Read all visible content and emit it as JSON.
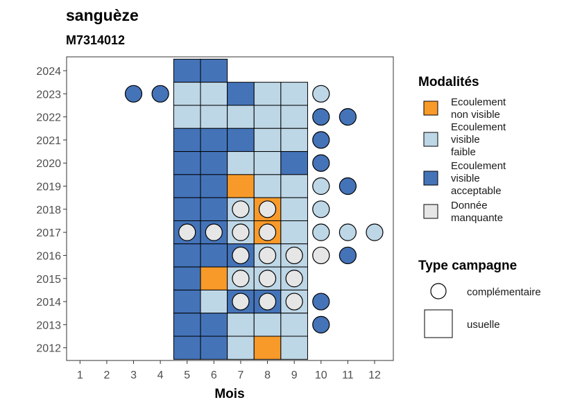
{
  "chart_data": {
    "type": "heatmap",
    "title": "sanguèze",
    "subtitle": "M7314012",
    "xlabel": "Mois",
    "ylabel": "",
    "x_ticks": [
      1,
      2,
      3,
      4,
      5,
      6,
      7,
      8,
      9,
      10,
      11,
      12
    ],
    "y_ticks": [
      2012,
      2013,
      2014,
      2015,
      2016,
      2017,
      2018,
      2019,
      2020,
      2021,
      2022,
      2023,
      2024
    ],
    "xlim": [
      0.5,
      12.7
    ],
    "ylim": [
      2011.45,
      2024.6
    ],
    "colors": {
      "ecoulement_non_visible": "#f89a2a",
      "ecoulement_visible_faible": "#bed7e7",
      "ecoulement_visible_acceptable": "#4473b8",
      "donnee_manquante": "#e6e6e6"
    },
    "legend": {
      "position": "right",
      "modalites": {
        "title": "Modalités",
        "items": [
          {
            "key": "ecoulement_non_visible",
            "lines": [
              "Ecoulement",
              "non visible"
            ]
          },
          {
            "key": "ecoulement_visible_faible",
            "lines": [
              "Ecoulement",
              "visible",
              "faible"
            ]
          },
          {
            "key": "ecoulement_visible_acceptable",
            "lines": [
              "Ecoulement",
              "visible",
              "acceptable"
            ]
          },
          {
            "key": "donnee_manquante",
            "lines": [
              "Donnée",
              "manquante"
            ]
          }
        ]
      },
      "type_campagne": {
        "title": "Type campagne",
        "items": [
          {
            "shape": "circle",
            "label": "complémentaire"
          },
          {
            "shape": "square",
            "label": "usuelle"
          }
        ]
      }
    },
    "squares": [
      {
        "year": 2024,
        "month": 5,
        "mod": "ecoulement_visible_acceptable"
      },
      {
        "year": 2024,
        "month": 6,
        "mod": "ecoulement_visible_acceptable"
      },
      {
        "year": 2023,
        "month": 5,
        "mod": "ecoulement_visible_faible"
      },
      {
        "year": 2023,
        "month": 6,
        "mod": "ecoulement_visible_faible"
      },
      {
        "year": 2023,
        "month": 7,
        "mod": "ecoulement_visible_acceptable"
      },
      {
        "year": 2023,
        "month": 8,
        "mod": "ecoulement_visible_faible"
      },
      {
        "year": 2023,
        "month": 9,
        "mod": "ecoulement_visible_faible"
      },
      {
        "year": 2022,
        "month": 5,
        "mod": "ecoulement_visible_faible"
      },
      {
        "year": 2022,
        "month": 6,
        "mod": "ecoulement_visible_faible"
      },
      {
        "year": 2022,
        "month": 7,
        "mod": "ecoulement_visible_faible"
      },
      {
        "year": 2022,
        "month": 8,
        "mod": "ecoulement_visible_faible"
      },
      {
        "year": 2022,
        "month": 9,
        "mod": "ecoulement_visible_faible"
      },
      {
        "year": 2021,
        "month": 5,
        "mod": "ecoulement_visible_acceptable"
      },
      {
        "year": 2021,
        "month": 6,
        "mod": "ecoulement_visible_acceptable"
      },
      {
        "year": 2021,
        "month": 7,
        "mod": "ecoulement_visible_acceptable"
      },
      {
        "year": 2021,
        "month": 8,
        "mod": "ecoulement_visible_faible"
      },
      {
        "year": 2021,
        "month": 9,
        "mod": "ecoulement_visible_faible"
      },
      {
        "year": 2020,
        "month": 5,
        "mod": "ecoulement_visible_acceptable"
      },
      {
        "year": 2020,
        "month": 6,
        "mod": "ecoulement_visible_acceptable"
      },
      {
        "year": 2020,
        "month": 7,
        "mod": "ecoulement_visible_faible"
      },
      {
        "year": 2020,
        "month": 8,
        "mod": "ecoulement_visible_faible"
      },
      {
        "year": 2020,
        "month": 9,
        "mod": "ecoulement_visible_acceptable"
      },
      {
        "year": 2019,
        "month": 5,
        "mod": "ecoulement_visible_acceptable"
      },
      {
        "year": 2019,
        "month": 6,
        "mod": "ecoulement_visible_acceptable"
      },
      {
        "year": 2019,
        "month": 7,
        "mod": "ecoulement_non_visible"
      },
      {
        "year": 2019,
        "month": 8,
        "mod": "ecoulement_visible_faible"
      },
      {
        "year": 2019,
        "month": 9,
        "mod": "ecoulement_visible_faible"
      },
      {
        "year": 2018,
        "month": 5,
        "mod": "ecoulement_visible_acceptable"
      },
      {
        "year": 2018,
        "month": 6,
        "mod": "ecoulement_visible_acceptable"
      },
      {
        "year": 2018,
        "month": 7,
        "mod": "ecoulement_visible_faible"
      },
      {
        "year": 2018,
        "month": 8,
        "mod": "ecoulement_non_visible"
      },
      {
        "year": 2018,
        "month": 9,
        "mod": "ecoulement_visible_faible"
      },
      {
        "year": 2017,
        "month": 5,
        "mod": "ecoulement_visible_acceptable"
      },
      {
        "year": 2017,
        "month": 6,
        "mod": "ecoulement_visible_acceptable"
      },
      {
        "year": 2017,
        "month": 7,
        "mod": "ecoulement_visible_faible"
      },
      {
        "year": 2017,
        "month": 8,
        "mod": "ecoulement_non_visible"
      },
      {
        "year": 2017,
        "month": 9,
        "mod": "ecoulement_visible_faible"
      },
      {
        "year": 2016,
        "month": 5,
        "mod": "ecoulement_visible_acceptable"
      },
      {
        "year": 2016,
        "month": 6,
        "mod": "ecoulement_visible_acceptable"
      },
      {
        "year": 2016,
        "month": 7,
        "mod": "ecoulement_visible_acceptable"
      },
      {
        "year": 2016,
        "month": 8,
        "mod": "ecoulement_visible_faible"
      },
      {
        "year": 2016,
        "month": 9,
        "mod": "ecoulement_visible_faible"
      },
      {
        "year": 2015,
        "month": 5,
        "mod": "ecoulement_visible_acceptable"
      },
      {
        "year": 2015,
        "month": 6,
        "mod": "ecoulement_non_visible"
      },
      {
        "year": 2015,
        "month": 7,
        "mod": "ecoulement_visible_faible"
      },
      {
        "year": 2015,
        "month": 8,
        "mod": "ecoulement_visible_faible"
      },
      {
        "year": 2015,
        "month": 9,
        "mod": "ecoulement_visible_faible"
      },
      {
        "year": 2014,
        "month": 5,
        "mod": "ecoulement_visible_acceptable"
      },
      {
        "year": 2014,
        "month": 6,
        "mod": "ecoulement_visible_faible"
      },
      {
        "year": 2014,
        "month": 7,
        "mod": "ecoulement_visible_acceptable"
      },
      {
        "year": 2014,
        "month": 8,
        "mod": "ecoulement_visible_acceptable"
      },
      {
        "year": 2014,
        "month": 9,
        "mod": "ecoulement_visible_faible"
      },
      {
        "year": 2013,
        "month": 5,
        "mod": "ecoulement_visible_acceptable"
      },
      {
        "year": 2013,
        "month": 6,
        "mod": "ecoulement_visible_acceptable"
      },
      {
        "year": 2013,
        "month": 7,
        "mod": "ecoulement_visible_faible"
      },
      {
        "year": 2013,
        "month": 8,
        "mod": "ecoulement_visible_faible"
      },
      {
        "year": 2013,
        "month": 9,
        "mod": "ecoulement_visible_faible"
      },
      {
        "year": 2012,
        "month": 5,
        "mod": "ecoulement_visible_acceptable"
      },
      {
        "year": 2012,
        "month": 6,
        "mod": "ecoulement_visible_acceptable"
      },
      {
        "year": 2012,
        "month": 7,
        "mod": "ecoulement_visible_faible"
      },
      {
        "year": 2012,
        "month": 8,
        "mod": "ecoulement_non_visible"
      },
      {
        "year": 2012,
        "month": 9,
        "mod": "ecoulement_visible_faible"
      }
    ],
    "circles": [
      {
        "year": 2023,
        "month": 3,
        "mod": "ecoulement_visible_acceptable"
      },
      {
        "year": 2023,
        "month": 4,
        "mod": "ecoulement_visible_acceptable"
      },
      {
        "year": 2023,
        "month": 10,
        "mod": "ecoulement_visible_faible"
      },
      {
        "year": 2022,
        "month": 10,
        "mod": "ecoulement_visible_acceptable"
      },
      {
        "year": 2022,
        "month": 11,
        "mod": "ecoulement_visible_acceptable"
      },
      {
        "year": 2021,
        "month": 10,
        "mod": "ecoulement_visible_acceptable"
      },
      {
        "year": 2020,
        "month": 10,
        "mod": "ecoulement_visible_acceptable"
      },
      {
        "year": 2019,
        "month": 10,
        "mod": "ecoulement_visible_faible"
      },
      {
        "year": 2019,
        "month": 11,
        "mod": "ecoulement_visible_acceptable"
      },
      {
        "year": 2018,
        "month": 7,
        "mod": "donnee_manquante"
      },
      {
        "year": 2018,
        "month": 8,
        "mod": "donnee_manquante"
      },
      {
        "year": 2018,
        "month": 10,
        "mod": "ecoulement_visible_faible"
      },
      {
        "year": 2017,
        "month": 5,
        "mod": "donnee_manquante"
      },
      {
        "year": 2017,
        "month": 6,
        "mod": "donnee_manquante"
      },
      {
        "year": 2017,
        "month": 7,
        "mod": "donnee_manquante"
      },
      {
        "year": 2017,
        "month": 8,
        "mod": "donnee_manquante"
      },
      {
        "year": 2017,
        "month": 10,
        "mod": "ecoulement_visible_faible"
      },
      {
        "year": 2017,
        "month": 11,
        "mod": "ecoulement_visible_faible"
      },
      {
        "year": 2017,
        "month": 12,
        "mod": "ecoulement_visible_faible"
      },
      {
        "year": 2016,
        "month": 7,
        "mod": "donnee_manquante"
      },
      {
        "year": 2016,
        "month": 8,
        "mod": "donnee_manquante"
      },
      {
        "year": 2016,
        "month": 9,
        "mod": "donnee_manquante"
      },
      {
        "year": 2016,
        "month": 10,
        "mod": "donnee_manquante"
      },
      {
        "year": 2016,
        "month": 11,
        "mod": "ecoulement_visible_acceptable"
      },
      {
        "year": 2015,
        "month": 7,
        "mod": "donnee_manquante"
      },
      {
        "year": 2015,
        "month": 8,
        "mod": "donnee_manquante"
      },
      {
        "year": 2015,
        "month": 9,
        "mod": "donnee_manquante"
      },
      {
        "year": 2014,
        "month": 7,
        "mod": "donnee_manquante"
      },
      {
        "year": 2014,
        "month": 8,
        "mod": "donnee_manquante"
      },
      {
        "year": 2014,
        "month": 9,
        "mod": "donnee_manquante"
      },
      {
        "year": 2014,
        "month": 10,
        "mod": "ecoulement_visible_acceptable"
      },
      {
        "year": 2013,
        "month": 10,
        "mod": "ecoulement_visible_acceptable"
      }
    ]
  }
}
